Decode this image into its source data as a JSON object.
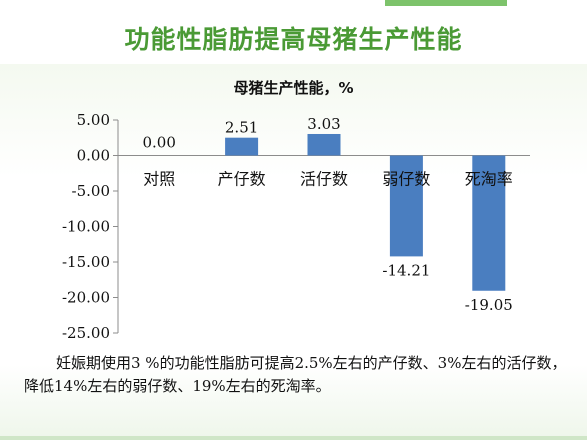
{
  "slide": {
    "title": "功能性脂肪提高母猪生产性能"
  },
  "caption": "妊娠期使用3 %的功能性脂肪可提高2.5%左右的产仔数、3%左右的活仔数，降低14%左右的弱仔数、19%左右的死淘率。",
  "colors": {
    "title": "#4a9a35",
    "bar": "#4a7ec0",
    "accent": "#7dc36b"
  },
  "chart_data": {
    "type": "bar",
    "title": "母猪生产性能，%",
    "categories": [
      "对照",
      "产仔数",
      "活仔数",
      "弱仔数",
      "死淘率"
    ],
    "values": [
      0.0,
      2.51,
      3.03,
      -14.21,
      -19.05
    ],
    "value_labels": [
      "0.00",
      "2.51",
      "3.03",
      "-14.21",
      "-19.05"
    ],
    "ylim": [
      -25,
      5
    ],
    "yticks": [
      5,
      0,
      -5,
      -10,
      -15,
      -20,
      -25
    ],
    "ytick_labels": [
      "5.00",
      "0.00",
      "-5.00",
      "-10.00",
      "-15.00",
      "-20.00",
      "-25.00"
    ],
    "grid": false,
    "legend": "none"
  }
}
